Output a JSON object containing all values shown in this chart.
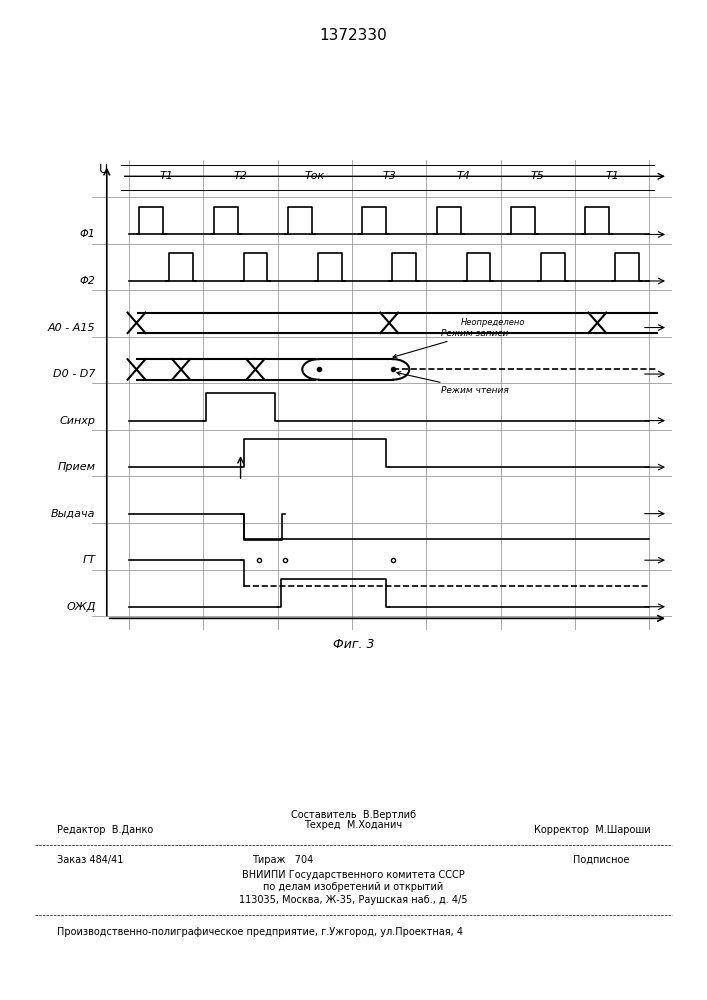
{
  "title": "1372330",
  "fig_label": "Фиг. 3",
  "background_color": "#ffffff",
  "line_color": "#000000",
  "grid_color": "#888888",
  "signal_labels": [
    "Φ1",
    "Φ2",
    "A0 - A15",
    "D0 - D7",
    "Синхр",
    "Прием",
    "Выдача",
    "ГТ",
    "ОЖД"
  ],
  "time_labels": [
    "T1",
    "T2",
    "Tок",
    "T3",
    "T4",
    "T5",
    "T1"
  ],
  "annotation_zapisi": "Режим записи",
  "annotation_chteniya": "Режим чтения",
  "annotation_neopr": "Неопределено",
  "y_label": "U",
  "footer_lines": [
    "Составитель  В.Вертлиб",
    "Редактор  В.Данко       Техред  М.Ходанич        Корректор  М.Шароши",
    "Заказ 484/41          Тираж   704            Подписное",
    "ВНИИПИ Государственного комитета СССР",
    "по делам изобретений и открытий",
    "113035, Москва, Ж-35, Раушская наб., д. 4/5",
    "Производственно-полиграфическое предприятие, г.Ужгород, ул.Проектная, 4"
  ]
}
